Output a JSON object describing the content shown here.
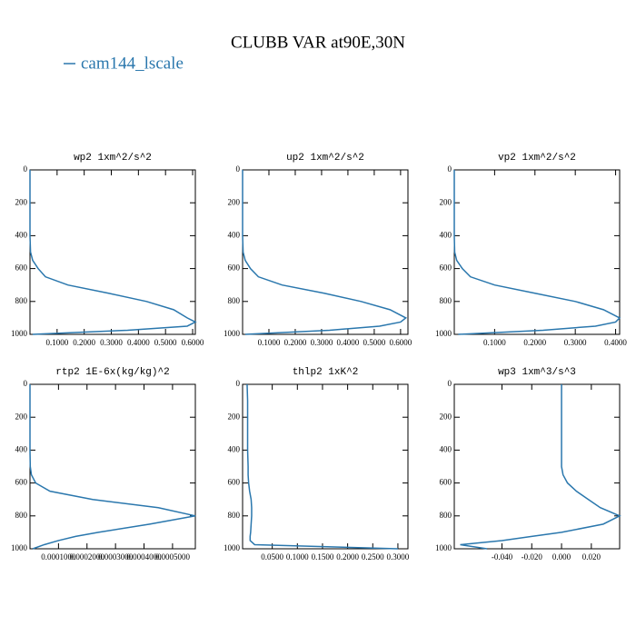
{
  "title": "CLUBB VAR at90E,30N",
  "chart_data": [
    {
      "type": "line",
      "title": "wp2   1xm^2/s^2",
      "y_inverted": true,
      "y": [
        0,
        100,
        200,
        300,
        400,
        500,
        550,
        600,
        650,
        700,
        750,
        800,
        850,
        900,
        925,
        950,
        975,
        1000
      ],
      "series": [
        {
          "name": "cam144_lscale",
          "color": "#2a77ad",
          "values": [
            0,
            0,
            0,
            0,
            0,
            0.002,
            0.01,
            0.03,
            0.057,
            0.14,
            0.29,
            0.43,
            0.53,
            0.58,
            0.61,
            0.58,
            0.36,
            0.01
          ]
        }
      ],
      "xlim": [
        0,
        0.61
      ],
      "ylim": [
        0,
        1000
      ],
      "xticks": [
        {
          "value": 0.1,
          "label": "0.1000"
        },
        {
          "value": 0.2,
          "label": "0.2000"
        },
        {
          "value": 0.3,
          "label": "0.3000"
        },
        {
          "value": 0.4,
          "label": "0.4000"
        },
        {
          "value": 0.5,
          "label": "0.5000"
        },
        {
          "value": 0.6,
          "label": "0.6000"
        }
      ],
      "yticks": [
        0,
        200,
        400,
        600,
        800,
        1000
      ]
    },
    {
      "type": "line",
      "title": "up2   1xm^2/s^2",
      "y_inverted": true,
      "y": [
        0,
        100,
        200,
        300,
        400,
        500,
        550,
        600,
        650,
        700,
        750,
        800,
        850,
        900,
        925,
        950,
        975,
        1000
      ],
      "series": [
        {
          "name": "cam144_lscale",
          "color": "#2a77ad",
          "values": [
            0,
            0,
            0,
            0,
            0,
            0.002,
            0.01,
            0.03,
            0.06,
            0.15,
            0.31,
            0.45,
            0.56,
            0.62,
            0.6,
            0.52,
            0.33,
            0.01
          ]
        }
      ],
      "xlim": [
        0,
        0.628
      ],
      "ylim": [
        0,
        1000
      ],
      "xticks": [
        {
          "value": 0.1,
          "label": "0.1000"
        },
        {
          "value": 0.2,
          "label": "0.2000"
        },
        {
          "value": 0.3,
          "label": "0.3000"
        },
        {
          "value": 0.4,
          "label": "0.4000"
        },
        {
          "value": 0.5,
          "label": "0.5000"
        },
        {
          "value": 0.6,
          "label": "0.6000"
        }
      ],
      "yticks": [
        0,
        200,
        400,
        600,
        800,
        1000
      ]
    },
    {
      "type": "line",
      "title": "vp2   1xm^2/s^2",
      "y_inverted": true,
      "y": [
        0,
        100,
        200,
        300,
        400,
        500,
        550,
        600,
        650,
        700,
        750,
        800,
        850,
        900,
        925,
        950,
        975,
        1000
      ],
      "series": [
        {
          "name": "cam144_lscale",
          "color": "#2a77ad",
          "values": [
            0,
            0,
            0,
            0,
            0,
            0.001,
            0.006,
            0.02,
            0.04,
            0.1,
            0.2,
            0.3,
            0.37,
            0.41,
            0.4,
            0.35,
            0.22,
            0.01
          ]
        }
      ],
      "xlim": [
        0,
        0.41
      ],
      "ylim": [
        0,
        1000
      ],
      "xticks": [
        {
          "value": 0.1,
          "label": "0.1000"
        },
        {
          "value": 0.2,
          "label": "0.2000"
        },
        {
          "value": 0.3,
          "label": "0.3000"
        },
        {
          "value": 0.4,
          "label": "0.4000"
        }
      ],
      "yticks": [
        0,
        200,
        400,
        600,
        800,
        1000
      ]
    },
    {
      "type": "line",
      "title": "rtp2   1E-6x(kg/kg)^2",
      "y_inverted": true,
      "y": [
        0,
        100,
        200,
        300,
        400,
        500,
        550,
        600,
        650,
        700,
        750,
        800,
        850,
        900,
        925,
        950,
        975,
        1000
      ],
      "series": [
        {
          "name": "cam144_lscale",
          "color": "#2a77ad",
          "values": [
            0,
            0,
            0,
            0,
            0,
            1e-06,
            5e-06,
            2e-05,
            7e-05,
            0.00022,
            0.00045,
            0.00058,
            0.00042,
            0.00024,
            0.00016,
            0.0001,
            5e-05,
            1e-05
          ]
        }
      ],
      "xlim": [
        0,
        0.00058
      ],
      "ylim": [
        0,
        1000
      ],
      "xticks": [
        {
          "value": 0.0001,
          "label": "0.0001000"
        },
        {
          "value": 0.0002,
          "label": "0.0002000"
        },
        {
          "value": 0.0003,
          "label": "0.0003000"
        },
        {
          "value": 0.0004,
          "label": "0.0004000"
        },
        {
          "value": 0.0005,
          "label": "0.0005000"
        }
      ],
      "yticks": [
        0,
        200,
        400,
        600,
        800,
        1000
      ]
    },
    {
      "type": "line",
      "title": "thlp2   1xK^2",
      "y_inverted": true,
      "y": [
        0,
        100,
        200,
        300,
        400,
        500,
        550,
        600,
        650,
        700,
        750,
        800,
        850,
        900,
        925,
        950,
        975,
        1000
      ],
      "series": [
        {
          "name": "cam144_lscale",
          "color": "#2a77ad",
          "values": [
            0,
            0.001,
            0.001,
            0.001,
            0.001,
            0.002,
            0.002,
            0.003,
            0.005,
            0.008,
            0.009,
            0.009,
            0.008,
            0.007,
            0.006,
            0.006,
            0.015,
            0.3
          ]
        }
      ],
      "xlim": [
        -0.009,
        0.32
      ],
      "ylim": [
        0,
        1000
      ],
      "xticks": [
        {
          "value": 0.05,
          "label": "0.0500"
        },
        {
          "value": 0.1,
          "label": "0.1000"
        },
        {
          "value": 0.15,
          "label": "0.1500"
        },
        {
          "value": 0.2,
          "label": "0.2000"
        },
        {
          "value": 0.25,
          "label": "0.2500"
        },
        {
          "value": 0.3,
          "label": "0.3000"
        }
      ],
      "yticks": [
        0,
        200,
        400,
        600,
        800,
        1000
      ]
    },
    {
      "type": "line",
      "title": "wp3   1xm^3/s^3",
      "y_inverted": true,
      "y": [
        0,
        100,
        200,
        300,
        400,
        500,
        550,
        600,
        650,
        700,
        750,
        800,
        850,
        900,
        925,
        950,
        975,
        1000
      ],
      "series": [
        {
          "name": "cam144_lscale",
          "color": "#2a77ad",
          "values": [
            0,
            0,
            0,
            0,
            0,
            0,
            0.001,
            0.004,
            0.01,
            0.018,
            0.026,
            0.039,
            0.028,
            0,
            -0.02,
            -0.04,
            -0.068,
            -0.05
          ]
        }
      ],
      "xlim": [
        -0.072,
        0.039
      ],
      "ylim": [
        0,
        1000
      ],
      "xticks": [
        {
          "value": -0.04,
          "label": "-0.040"
        },
        {
          "value": -0.02,
          "label": "-0.020"
        },
        {
          "value": 0,
          "label": "0.000"
        },
        {
          "value": 0.02,
          "label": "0.020"
        }
      ],
      "yticks": [
        0,
        200,
        400,
        600,
        800,
        1000
      ]
    }
  ]
}
